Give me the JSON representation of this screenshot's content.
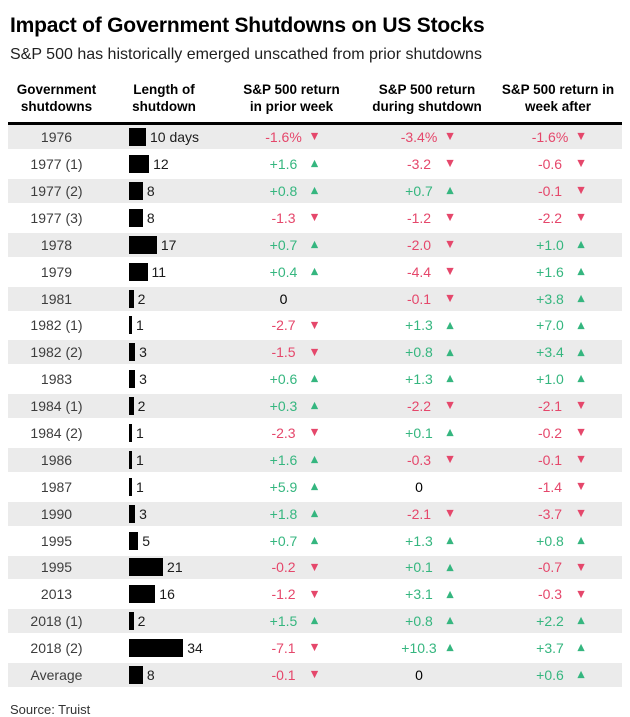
{
  "title": "Impact of Government Shutdowns on US Stocks",
  "subtitle": "S&P 500 has historically emerged unscathed from prior shutdowns",
  "source": "Source: Truist",
  "colors": {
    "positive": "#35b67f",
    "negative": "#e5476b",
    "neutral": "#000000",
    "bar": "#000000",
    "row_stripe": "#ebebeb"
  },
  "glyphs": {
    "up": "▲",
    "down": "▼"
  },
  "table": {
    "headers": [
      {
        "line1": "Government",
        "line2": "shutdowns"
      },
      {
        "line1": "Length of",
        "line2": "shutdown"
      },
      {
        "line1": "S&P 500 return",
        "line2": "in prior week"
      },
      {
        "line1": "S&P 500 return",
        "line2": "during shutdown"
      },
      {
        "line1": "S&P 500 return in",
        "line2": "week after"
      }
    ],
    "rows": [
      {
        "year": "1976",
        "days": 10,
        "days_label": "10 days",
        "prior": "-1.6%",
        "prior_dir": "down",
        "during": "-3.4%",
        "during_dir": "down",
        "after": "-1.6%",
        "after_dir": "down"
      },
      {
        "year": "1977 (1)",
        "days": 12,
        "days_label": "12",
        "prior": "+1.6",
        "prior_dir": "up",
        "during": "-3.2",
        "during_dir": "down",
        "after": "-0.6",
        "after_dir": "down"
      },
      {
        "year": "1977 (2)",
        "days": 8,
        "days_label": "8",
        "prior": "+0.8",
        "prior_dir": "up",
        "during": "+0.7",
        "during_dir": "up",
        "after": "-0.1",
        "after_dir": "down"
      },
      {
        "year": "1977 (3)",
        "days": 8,
        "days_label": "8",
        "prior": "-1.3",
        "prior_dir": "down",
        "during": "-1.2",
        "during_dir": "down",
        "after": "-2.2",
        "after_dir": "down"
      },
      {
        "year": "1978",
        "days": 17,
        "days_label": "17",
        "prior": "+0.7",
        "prior_dir": "up",
        "during": "-2.0",
        "during_dir": "down",
        "after": "+1.0",
        "after_dir": "up"
      },
      {
        "year": "1979",
        "days": 11,
        "days_label": "11",
        "prior": "+0.4",
        "prior_dir": "up",
        "during": "-4.4",
        "during_dir": "down",
        "after": "+1.6",
        "after_dir": "up"
      },
      {
        "year": "1981",
        "days": 2,
        "days_label": "2",
        "prior": "0",
        "prior_dir": "none",
        "during": "-0.1",
        "during_dir": "down",
        "after": "+3.8",
        "after_dir": "up"
      },
      {
        "year": "1982 (1)",
        "days": 1,
        "days_label": "1",
        "prior": "-2.7",
        "prior_dir": "down",
        "during": "+1.3",
        "during_dir": "up",
        "after": "+7.0",
        "after_dir": "up"
      },
      {
        "year": "1982 (2)",
        "days": 3,
        "days_label": "3",
        "prior": "-1.5",
        "prior_dir": "down",
        "during": "+0.8",
        "during_dir": "up",
        "after": "+3.4",
        "after_dir": "up"
      },
      {
        "year": "1983",
        "days": 3,
        "days_label": "3",
        "prior": "+0.6",
        "prior_dir": "up",
        "during": "+1.3",
        "during_dir": "up",
        "after": "+1.0",
        "after_dir": "up"
      },
      {
        "year": "1984 (1)",
        "days": 2,
        "days_label": "2",
        "prior": "+0.3",
        "prior_dir": "up",
        "during": "-2.2",
        "during_dir": "down",
        "after": "-2.1",
        "after_dir": "down"
      },
      {
        "year": "1984 (2)",
        "days": 1,
        "days_label": "1",
        "prior": "-2.3",
        "prior_dir": "down",
        "during": "+0.1",
        "during_dir": "up",
        "after": "-0.2",
        "after_dir": "down"
      },
      {
        "year": "1986",
        "days": 1,
        "days_label": "1",
        "prior": "+1.6",
        "prior_dir": "up",
        "during": "-0.3",
        "during_dir": "down",
        "after": "-0.1",
        "after_dir": "down"
      },
      {
        "year": "1987",
        "days": 1,
        "days_label": "1",
        "prior": "+5.9",
        "prior_dir": "up",
        "during": "0",
        "during_dir": "none",
        "after": "-1.4",
        "after_dir": "down"
      },
      {
        "year": "1990",
        "days": 3,
        "days_label": "3",
        "prior": "+1.8",
        "prior_dir": "up",
        "during": "-2.1",
        "during_dir": "down",
        "after": "-3.7",
        "after_dir": "down"
      },
      {
        "year": "1995",
        "days": 5,
        "days_label": "5",
        "prior": "+0.7",
        "prior_dir": "up",
        "during": "+1.3",
        "during_dir": "up",
        "after": "+0.8",
        "after_dir": "up"
      },
      {
        "year": "1995",
        "days": 21,
        "days_label": "21",
        "prior": "-0.2",
        "prior_dir": "down",
        "during": "+0.1",
        "during_dir": "up",
        "after": "-0.7",
        "after_dir": "down"
      },
      {
        "year": "2013",
        "days": 16,
        "days_label": "16",
        "prior": "-1.2",
        "prior_dir": "down",
        "during": "+3.1",
        "during_dir": "up",
        "after": "-0.3",
        "after_dir": "down"
      },
      {
        "year": "2018 (1)",
        "days": 2,
        "days_label": "2",
        "prior": "+1.5",
        "prior_dir": "up",
        "during": "+0.8",
        "during_dir": "up",
        "after": "+2.2",
        "after_dir": "up"
      },
      {
        "year": "2018 (2)",
        "days": 34,
        "days_label": "34",
        "prior": "-7.1",
        "prior_dir": "down",
        "during": "+10.3",
        "during_dir": "up",
        "after": "+3.7",
        "after_dir": "up"
      },
      {
        "year": "Average",
        "days": 8,
        "days_label": "8",
        "prior": "-0.1",
        "prior_dir": "down",
        "during": "0",
        "during_dir": "none",
        "after": "+0.6",
        "after_dir": "up"
      }
    ]
  },
  "chart_data": {
    "type": "table",
    "title": "Impact of Government Shutdowns on US Stocks",
    "subtitle": "S&P 500 has historically emerged unscathed from prior shutdowns",
    "source": "Source: Truist",
    "columns": [
      "Government shutdowns",
      "Length of shutdown (days)",
      "S&P 500 return in prior week (%)",
      "S&P 500 return during shutdown (%)",
      "S&P 500 return in week after (%)"
    ],
    "categories": [
      "1976",
      "1977 (1)",
      "1977 (2)",
      "1977 (3)",
      "1978",
      "1979",
      "1981",
      "1982 (1)",
      "1982 (2)",
      "1983",
      "1984 (1)",
      "1984 (2)",
      "1986",
      "1987",
      "1990",
      "1995",
      "1995",
      "2013",
      "2018 (1)",
      "2018 (2)",
      "Average"
    ],
    "series": [
      {
        "name": "Length of shutdown (days)",
        "values": [
          10,
          12,
          8,
          8,
          17,
          11,
          2,
          1,
          3,
          3,
          2,
          1,
          1,
          1,
          3,
          5,
          21,
          16,
          2,
          34,
          8
        ]
      },
      {
        "name": "S&P 500 return in prior week (%)",
        "values": [
          -1.6,
          1.6,
          0.8,
          -1.3,
          0.7,
          0.4,
          0,
          -2.7,
          -1.5,
          0.6,
          0.3,
          -2.3,
          1.6,
          5.9,
          1.8,
          0.7,
          -0.2,
          -1.2,
          1.5,
          -7.1,
          -0.1
        ]
      },
      {
        "name": "S&P 500 return during shutdown (%)",
        "values": [
          -3.4,
          -3.2,
          0.7,
          -1.2,
          -2.0,
          -4.4,
          -0.1,
          1.3,
          0.8,
          1.3,
          -2.2,
          0.1,
          -0.3,
          0,
          -2.1,
          1.3,
          0.1,
          3.1,
          0.8,
          10.3,
          0
        ]
      },
      {
        "name": "S&P 500 return in week after (%)",
        "values": [
          -1.6,
          -0.6,
          -0.1,
          -2.2,
          1.0,
          1.6,
          3.8,
          7.0,
          3.4,
          1.0,
          -2.1,
          -0.2,
          -0.1,
          -1.4,
          -3.7,
          0.8,
          -0.7,
          -0.3,
          2.2,
          3.7,
          0.6
        ]
      }
    ],
    "layout": {
      "bar_column": "Length of shutdown",
      "up_marker": "green triangle",
      "down_marker": "red triangle",
      "striped_rows": true
    }
  }
}
